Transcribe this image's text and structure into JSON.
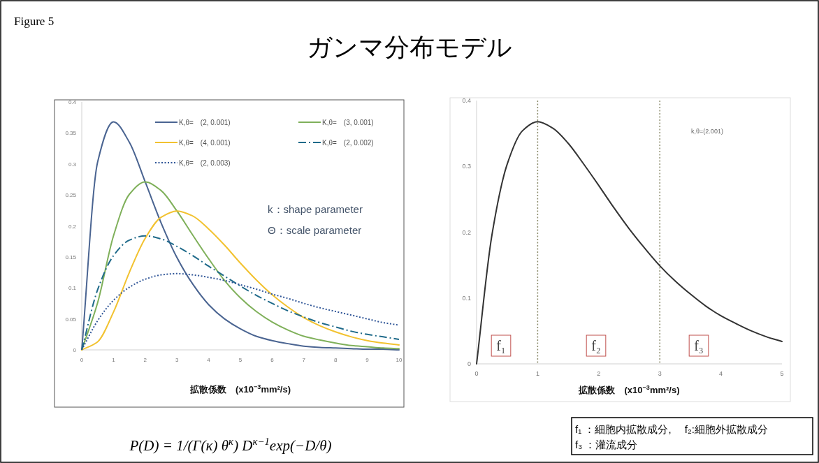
{
  "chart_data": [
    {
      "type": "line",
      "title": "ガンマ分布モデル",
      "xlabel": "拡散係数　(x10$^{−3}$mm²/s)",
      "x": [
        0,
        0.5,
        1,
        1.5,
        2,
        2.5,
        3,
        3.5,
        4,
        4.5,
        5,
        5.5,
        6,
        6.5,
        7,
        7.5,
        8,
        8.5,
        9,
        9.5,
        10
      ],
      "series": [
        {
          "name": "K,θ=　(2, 0.001)",
          "color": "#4a6491",
          "line_style": "solid",
          "values": [
            0,
            0.303,
            0.368,
            0.335,
            0.271,
            0.205,
            0.149,
            0.106,
            0.073,
            0.05,
            0.034,
            0.022,
            0.015,
            0.01,
            0.006,
            0.004,
            0.003,
            0.002,
            0.001,
            0.001,
            0.0
          ]
        },
        {
          "name": "K,θ=　(3, 0.001)",
          "color": "#7fb05a",
          "line_style": "solid",
          "values": [
            0,
            0.076,
            0.184,
            0.251,
            0.271,
            0.257,
            0.224,
            0.185,
            0.147,
            0.112,
            0.084,
            0.062,
            0.045,
            0.032,
            0.022,
            0.016,
            0.011,
            0.007,
            0.005,
            0.003,
            0.002
          ]
        },
        {
          "name": "K,θ=　(4, 0.001)",
          "color": "#f2c230",
          "line_style": "solid",
          "values": [
            0,
            0.013,
            0.061,
            0.125,
            0.18,
            0.214,
            0.224,
            0.216,
            0.195,
            0.169,
            0.14,
            0.113,
            0.089,
            0.069,
            0.052,
            0.039,
            0.029,
            0.021,
            0.015,
            0.011,
            0.008
          ]
        },
        {
          "name": "K,θ=　(2, 0.002)",
          "color": "#1f6a8a",
          "line_style": "dashed",
          "values": [
            0,
            0.097,
            0.152,
            0.177,
            0.184,
            0.179,
            0.167,
            0.152,
            0.135,
            0.119,
            0.103,
            0.088,
            0.075,
            0.063,
            0.053,
            0.044,
            0.037,
            0.03,
            0.025,
            0.021,
            0.017
          ]
        },
        {
          "name": "K,θ=　(2, 0.003)",
          "color": "#2f5597",
          "line_style": "dotted",
          "values": [
            0,
            0.047,
            0.08,
            0.101,
            0.114,
            0.121,
            0.123,
            0.121,
            0.117,
            0.112,
            0.105,
            0.098,
            0.09,
            0.083,
            0.075,
            0.068,
            0.062,
            0.056,
            0.05,
            0.044,
            0.04
          ]
        }
      ],
      "xlim": [
        0,
        10
      ],
      "xticks": [
        0,
        1,
        2,
        3,
        4,
        5,
        6,
        7,
        8,
        9,
        10
      ],
      "ylim": [
        0,
        0.4
      ],
      "yticks": [
        0,
        0.05,
        0.1,
        0.15,
        0.2,
        0.25,
        0.3,
        0.35,
        0.4
      ],
      "grid": false,
      "legend": "top right",
      "annotations": [
        "k：shape parameter",
        "Θ：scale parameter",
        "Figure 5",
        "P(D) = 1/(Γ(κ) θ$^{κ}$) D$^{κ−1}$exp(−D/θ)"
      ]
    },
    {
      "type": "line",
      "xlabel": "拡散係数　(x10$^{−3}$mm²/s)",
      "x": [
        0,
        0.25,
        0.5,
        0.75,
        1,
        1.25,
        1.5,
        1.75,
        2,
        2.25,
        2.5,
        2.75,
        3,
        3.25,
        3.5,
        3.75,
        4,
        4.25,
        4.5,
        4.75,
        5
      ],
      "series": [
        {
          "color": "#333333",
          "line_style": "solid",
          "values": [
            0,
            0.195,
            0.303,
            0.354,
            0.368,
            0.358,
            0.335,
            0.304,
            0.271,
            0.237,
            0.205,
            0.176,
            0.149,
            0.126,
            0.106,
            0.088,
            0.073,
            0.061,
            0.05,
            0.041,
            0.034
          ]
        }
      ],
      "xlim": [
        0,
        5
      ],
      "xticks": [
        0,
        1,
        2,
        3,
        4,
        5
      ],
      "ylim": [
        0,
        0.4
      ],
      "yticks": [
        0,
        0.1,
        0.2,
        0.3,
        0.4
      ],
      "grid": false,
      "ref_lines": [
        {
          "axis": "x",
          "value": 1,
          "color": "#8a8a6a",
          "line_style": "dotted"
        },
        {
          "axis": "x",
          "value": 3,
          "color": "#8a8a6a",
          "line_style": "dotted"
        }
      ],
      "annotations": [
        "k,θ=(2.001)",
        "f₁",
        "f₂",
        "f₃",
        "f₁ ：細胞内拡散成分,　 f₂:細胞外拡散成分",
        "f₃ ：灌流成分"
      ]
    }
  ]
}
